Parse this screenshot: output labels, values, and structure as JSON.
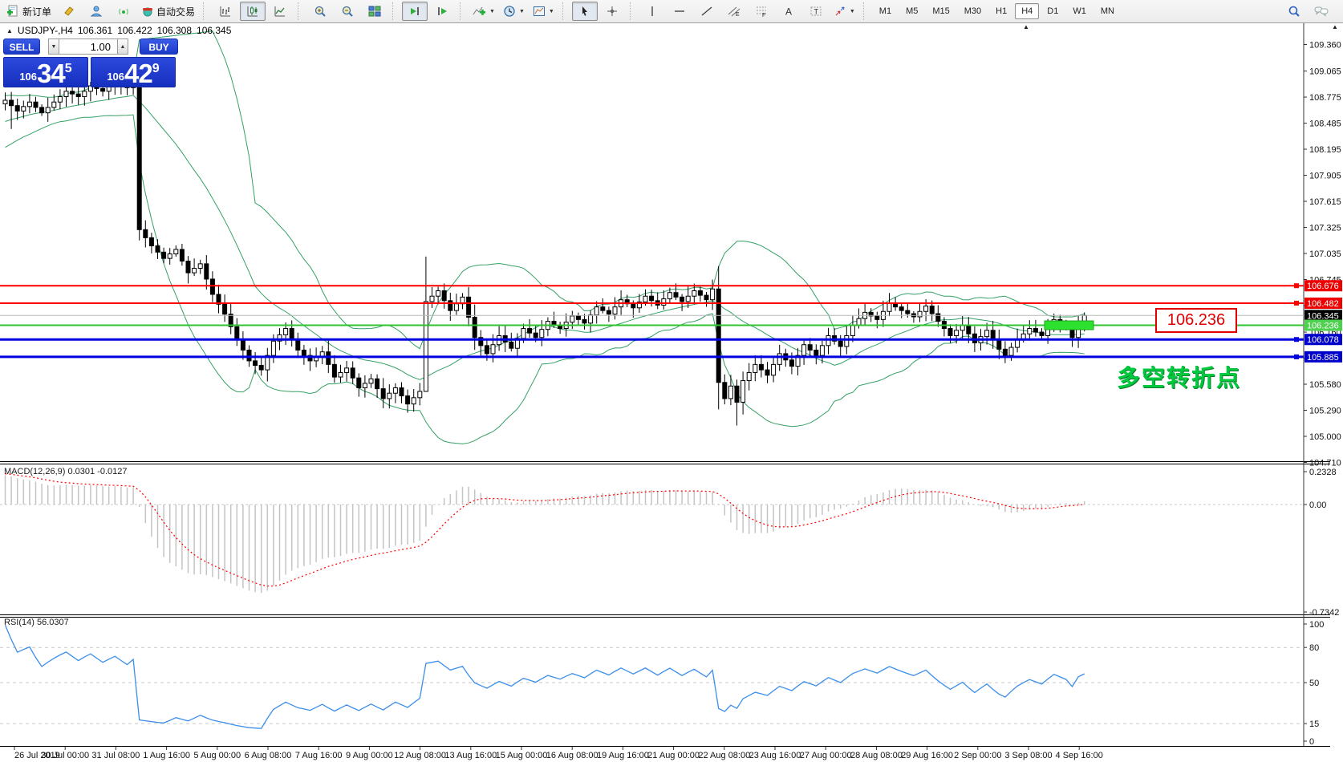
{
  "toolbar": {
    "groups": [
      {
        "items": [
          {
            "name": "new-order",
            "icon": "new-order",
            "label": "新订单"
          },
          {
            "name": "charts",
            "icon": "charts"
          },
          {
            "name": "profiles",
            "icon": "profiles"
          },
          {
            "name": "signals",
            "icon": "signals"
          },
          {
            "name": "autotrading",
            "icon": "autotrading",
            "label": "自动交易"
          }
        ]
      },
      {
        "items": [
          {
            "name": "bar-chart",
            "icon": "bar-chart"
          },
          {
            "name": "candlestick-chart",
            "icon": "candlestick",
            "active": true
          },
          {
            "name": "line-chart",
            "icon": "line-chart"
          }
        ]
      },
      {
        "items": [
          {
            "name": "zoom-in",
            "icon": "zoom-in"
          },
          {
            "name": "zoom-out",
            "icon": "zoom-out"
          },
          {
            "name": "tile-windows",
            "icon": "tile-windows"
          }
        ]
      },
      {
        "items": [
          {
            "name": "auto-scroll",
            "icon": "auto-scroll",
            "active": true
          },
          {
            "name": "chart-shift",
            "icon": "chart-shift"
          }
        ]
      },
      {
        "items": [
          {
            "name": "indicators",
            "icon": "indicators",
            "dropdown": true
          },
          {
            "name": "periods",
            "icon": "periods",
            "dropdown": true
          },
          {
            "name": "templates",
            "icon": "templates",
            "dropdown": true
          }
        ]
      },
      {
        "items": [
          {
            "name": "cursor",
            "icon": "cursor",
            "active": true
          },
          {
            "name": "crosshair",
            "icon": "crosshair"
          }
        ]
      },
      {
        "items": [
          {
            "name": "vertical-line",
            "icon": "vline"
          },
          {
            "name": "horizontal-line",
            "icon": "hline"
          },
          {
            "name": "trendline",
            "icon": "trendline"
          },
          {
            "name": "equidistant-channel",
            "icon": "channel"
          },
          {
            "name": "fibonacci",
            "icon": "fibonacci"
          },
          {
            "name": "text",
            "icon": "text"
          },
          {
            "name": "text-label",
            "icon": "text-label"
          },
          {
            "name": "arrows",
            "icon": "arrows",
            "dropdown": true
          }
        ]
      }
    ],
    "timeframes": [
      "M1",
      "M5",
      "M15",
      "M30",
      "H1",
      "H4",
      "D1",
      "W1",
      "MN"
    ],
    "active_timeframe": "H4",
    "right_icons": [
      "search",
      "chat"
    ]
  },
  "chart_title": {
    "symbol": "USDJPY-,H4",
    "open": "106.361",
    "high": "106.422",
    "low": "106.308",
    "close": "106.345"
  },
  "one_click": {
    "sell_label": "SELL",
    "buy_label": "BUY",
    "volume": "1.00",
    "sell": {
      "prefix": "106",
      "big": "34",
      "sup": "5"
    },
    "buy": {
      "prefix": "106",
      "big": "42",
      "sup": "9"
    }
  },
  "main_axis": {
    "ticks": [
      "109.360",
      "109.065",
      "108.775",
      "108.485",
      "108.195",
      "107.905",
      "107.615",
      "107.325",
      "107.035",
      "106.745",
      "106.455",
      "106.160",
      "105.870",
      "105.580",
      "105.290",
      "105.000",
      "104.710"
    ]
  },
  "time_axis": {
    "labels": [
      "26 Jul 2019",
      "30 Jul 00:00",
      "31 Jul 08:00",
      "1 Aug 16:00",
      "5 Aug 00:00",
      "6 Aug 08:00",
      "7 Aug 16:00",
      "9 Aug 00:00",
      "12 Aug 08:00",
      "13 Aug 16:00",
      "15 Aug 00:00",
      "16 Aug 08:00",
      "19 Aug 16:00",
      "21 Aug 00:00",
      "22 Aug 08:00",
      "23 Aug 16:00",
      "27 Aug 00:00",
      "28 Aug 08:00",
      "29 Aug 16:00",
      "2 Sep 00:00",
      "3 Sep 08:00",
      "4 Sep 16:00"
    ]
  },
  "hlines": [
    {
      "price": "106.676",
      "color": "#ff0000",
      "width": 2,
      "label_bg": "#ee0000",
      "marker": true
    },
    {
      "price": "106.482",
      "color": "#ff0000",
      "width": 2,
      "label_bg": "#ee0000",
      "marker": true
    },
    {
      "price": "106.345",
      "color": "#b8b8b8",
      "width": 1,
      "label_bg": "#000000",
      "marker": false
    },
    {
      "price": "106.236",
      "color": "#2fc42f",
      "width": 2,
      "label_bg": "#4ed14e",
      "marker": false,
      "segment": true
    },
    {
      "price": "106.078",
      "color": "#0000e0",
      "width": 3,
      "label_bg": "#0000cc",
      "marker": true
    },
    {
      "price": "105.885",
      "color": "#0000e0",
      "width": 3,
      "label_bg": "#0000cc",
      "marker": true
    }
  ],
  "annotations": {
    "price_callout": "106.236",
    "note": "多空转折点"
  },
  "macd_panel": {
    "label": "MACD(12,26,9) 0.0301 -0.0127",
    "axis": [
      "0.2328",
      "0.00",
      "-0.7342"
    ]
  },
  "rsi_panel": {
    "label": "RSI(14) 56.0307",
    "axis": [
      "100",
      "80",
      "50",
      "15",
      "0"
    ]
  },
  "chart_data": {
    "type": "candlestick",
    "symbol": "USDJPY-",
    "timeframe": "H4",
    "bars": 178,
    "title": "USDJPY- H4 with Bollinger Bands, horizontal levels, MACD(12,26,9), RSI(14)",
    "price_range": [
      104.71,
      109.36
    ],
    "macd_range": [
      -0.7342,
      0.2328
    ],
    "rsi_range": [
      0,
      100
    ],
    "rsi_levels": [
      80,
      50,
      15
    ],
    "hline_prices": [
      106.676,
      106.482,
      106.345,
      106.236,
      106.078,
      105.885
    ],
    "current_price": 106.345,
    "close_anchors": [
      [
        0,
        108.74
      ],
      [
        2,
        108.62
      ],
      [
        4,
        108.72
      ],
      [
        6,
        108.6
      ],
      [
        8,
        108.72
      ],
      [
        10,
        108.84
      ],
      [
        12,
        108.78
      ],
      [
        14,
        108.9
      ],
      [
        16,
        108.84
      ],
      [
        18,
        108.94
      ],
      [
        20,
        108.88
      ],
      [
        21,
        108.96
      ],
      [
        22,
        107.3
      ],
      [
        24,
        107.12
      ],
      [
        26,
        106.98
      ],
      [
        28,
        107.08
      ],
      [
        30,
        106.82
      ],
      [
        32,
        106.92
      ],
      [
        34,
        106.58
      ],
      [
        36,
        106.36
      ],
      [
        38,
        106.08
      ],
      [
        40,
        105.84
      ],
      [
        42,
        105.74
      ],
      [
        44,
        106.06
      ],
      [
        46,
        106.2
      ],
      [
        48,
        105.96
      ],
      [
        50,
        105.84
      ],
      [
        52,
        105.94
      ],
      [
        54,
        105.66
      ],
      [
        56,
        105.76
      ],
      [
        58,
        105.54
      ],
      [
        60,
        105.64
      ],
      [
        62,
        105.42
      ],
      [
        64,
        105.54
      ],
      [
        66,
        105.36
      ],
      [
        68,
        105.5
      ],
      [
        69,
        106.5
      ],
      [
        71,
        106.62
      ],
      [
        73,
        106.4
      ],
      [
        75,
        106.55
      ],
      [
        77,
        106.1
      ],
      [
        79,
        105.92
      ],
      [
        81,
        106.12
      ],
      [
        83,
        105.98
      ],
      [
        85,
        106.2
      ],
      [
        87,
        106.1
      ],
      [
        89,
        106.28
      ],
      [
        91,
        106.2
      ],
      [
        93,
        106.34
      ],
      [
        95,
        106.26
      ],
      [
        97,
        106.44
      ],
      [
        99,
        106.36
      ],
      [
        101,
        106.52
      ],
      [
        103,
        106.43
      ],
      [
        105,
        106.56
      ],
      [
        107,
        106.46
      ],
      [
        109,
        106.6
      ],
      [
        111,
        106.5
      ],
      [
        113,
        106.62
      ],
      [
        115,
        106.52
      ],
      [
        116,
        106.64
      ],
      [
        117,
        105.6
      ],
      [
        118,
        105.42
      ],
      [
        119,
        105.56
      ],
      [
        120,
        105.38
      ],
      [
        121,
        105.62
      ],
      [
        123,
        105.8
      ],
      [
        125,
        105.68
      ],
      [
        127,
        105.92
      ],
      [
        129,
        105.78
      ],
      [
        131,
        106.02
      ],
      [
        133,
        105.9
      ],
      [
        135,
        106.12
      ],
      [
        137,
        106.0
      ],
      [
        139,
        106.24
      ],
      [
        141,
        106.38
      ],
      [
        143,
        106.3
      ],
      [
        145,
        106.48
      ],
      [
        147,
        106.4
      ],
      [
        149,
        106.33
      ],
      [
        151,
        106.45
      ],
      [
        153,
        106.28
      ],
      [
        155,
        106.12
      ],
      [
        157,
        106.24
      ],
      [
        159,
        106.04
      ],
      [
        161,
        106.18
      ],
      [
        163,
        105.97
      ],
      [
        164,
        105.9
      ],
      [
        166,
        106.08
      ],
      [
        168,
        106.2
      ],
      [
        170,
        106.12
      ],
      [
        172,
        106.3
      ],
      [
        174,
        106.22
      ],
      [
        175,
        106.1
      ],
      [
        176,
        106.28
      ],
      [
        177,
        106.345
      ]
    ],
    "warmup_anchors": [
      [
        -40,
        107.3
      ],
      [
        -32,
        107.7
      ],
      [
        -24,
        108.05
      ],
      [
        -16,
        108.35
      ],
      [
        -8,
        108.55
      ],
      [
        -1,
        108.7
      ]
    ],
    "wick_overrides": {
      "1": {
        "low": 108.42
      },
      "22": {
        "high": 108.82,
        "low": 107.18
      },
      "69": {
        "high": 107.0,
        "low": 105.62
      },
      "117": {
        "low": 105.3
      },
      "120": {
        "low": 105.12
      }
    },
    "indicators": [
      {
        "name": "Bollinger Bands",
        "period": 20,
        "deviation": 2
      },
      {
        "name": "MACD",
        "fast": 12,
        "slow": 26,
        "signal": 9,
        "current": [
          0.0301,
          -0.0127
        ]
      },
      {
        "name": "RSI",
        "period": 14,
        "current": 56.0307
      }
    ],
    "colors": {
      "bull": "#ffffff",
      "bear": "#000000",
      "outline": "#000000",
      "bands": "#35a065",
      "macd_hist": "#c4c4c4",
      "macd_signal": "#ff0000",
      "rsi_line": "#3b8eea",
      "levels_dash": "#c8c8c8",
      "current_line": "#b8b8b8",
      "highlight_segment": "#2fe12f"
    }
  }
}
